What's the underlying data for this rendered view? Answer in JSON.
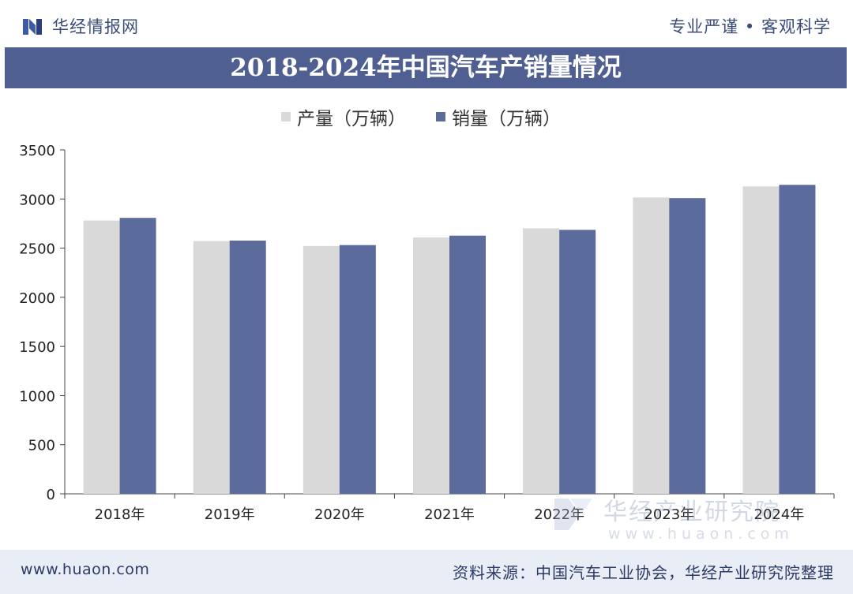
{
  "header": {
    "brand": "华经情报网",
    "slogan": "专业严谨 • 客观科学"
  },
  "colors": {
    "band": "#4f5f92",
    "production": "#d9d9d9",
    "sales": "#5b6b9c",
    "footer_bg": "#e9edf5"
  },
  "chart_data": {
    "type": "bar",
    "title": "2018-2024年中国汽车产销量情况",
    "categories": [
      "2018年",
      "2019年",
      "2020年",
      "2021年",
      "2022年",
      "2023年",
      "2024年"
    ],
    "series": [
      {
        "name": "产量（万辆）",
        "values": [
          2781,
          2572,
          2522,
          2608,
          2702,
          3016,
          3128
        ]
      },
      {
        "name": "销量（万辆）",
        "values": [
          2808,
          2577,
          2531,
          2627,
          2686,
          3009,
          3144
        ]
      }
    ],
    "xlabel": "",
    "ylabel": "",
    "ylim": [
      0,
      3500
    ],
    "yticks": [
      0,
      500,
      1000,
      1500,
      2000,
      2500,
      3000,
      3500
    ],
    "legend_position": "top-center",
    "grid": false
  },
  "watermark": {
    "text": "华经产业研究院",
    "url": "www.huaon.com"
  },
  "footer": {
    "site": "www.huaon.com",
    "source": "资料来源：中国汽车工业协会，华经产业研究院整理"
  }
}
